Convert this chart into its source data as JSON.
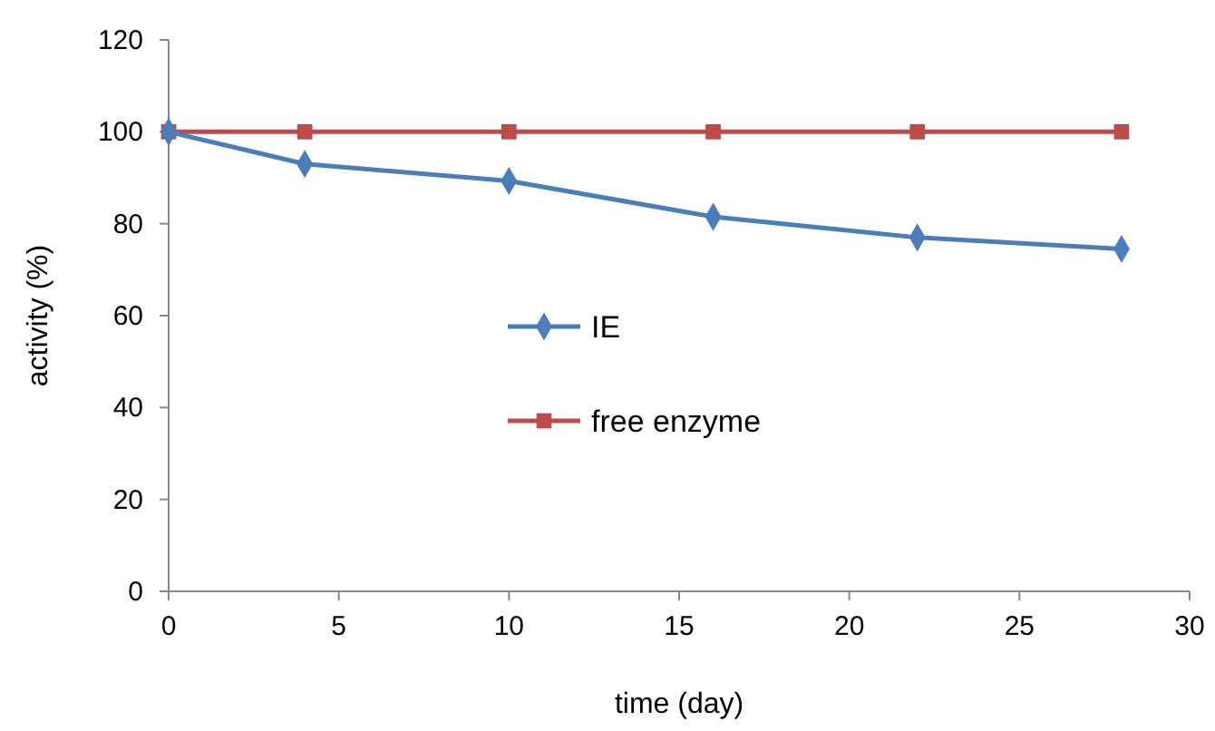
{
  "chart_data": {
    "type": "line",
    "xlabel": "time (day)",
    "ylabel": "activity (%)",
    "x": [
      0,
      4,
      10,
      16,
      22,
      28
    ],
    "series": [
      {
        "name": "IE",
        "color": "#4a7ebb",
        "values": [
          100,
          93,
          89.3,
          81.5,
          77,
          74.5
        ],
        "marker": "diamond"
      },
      {
        "name": "free enzyme",
        "color": "#be4b48",
        "values": [
          100,
          100,
          100,
          100,
          100,
          100
        ],
        "marker": "square"
      }
    ],
    "xlim": [
      0,
      30
    ],
    "xticks": [
      0,
      5,
      10,
      15,
      20,
      25,
      30
    ],
    "ylim": [
      0,
      120
    ],
    "yticks": [
      0,
      20,
      40,
      60,
      80,
      100,
      120
    ],
    "grid": false,
    "legend": "left"
  }
}
